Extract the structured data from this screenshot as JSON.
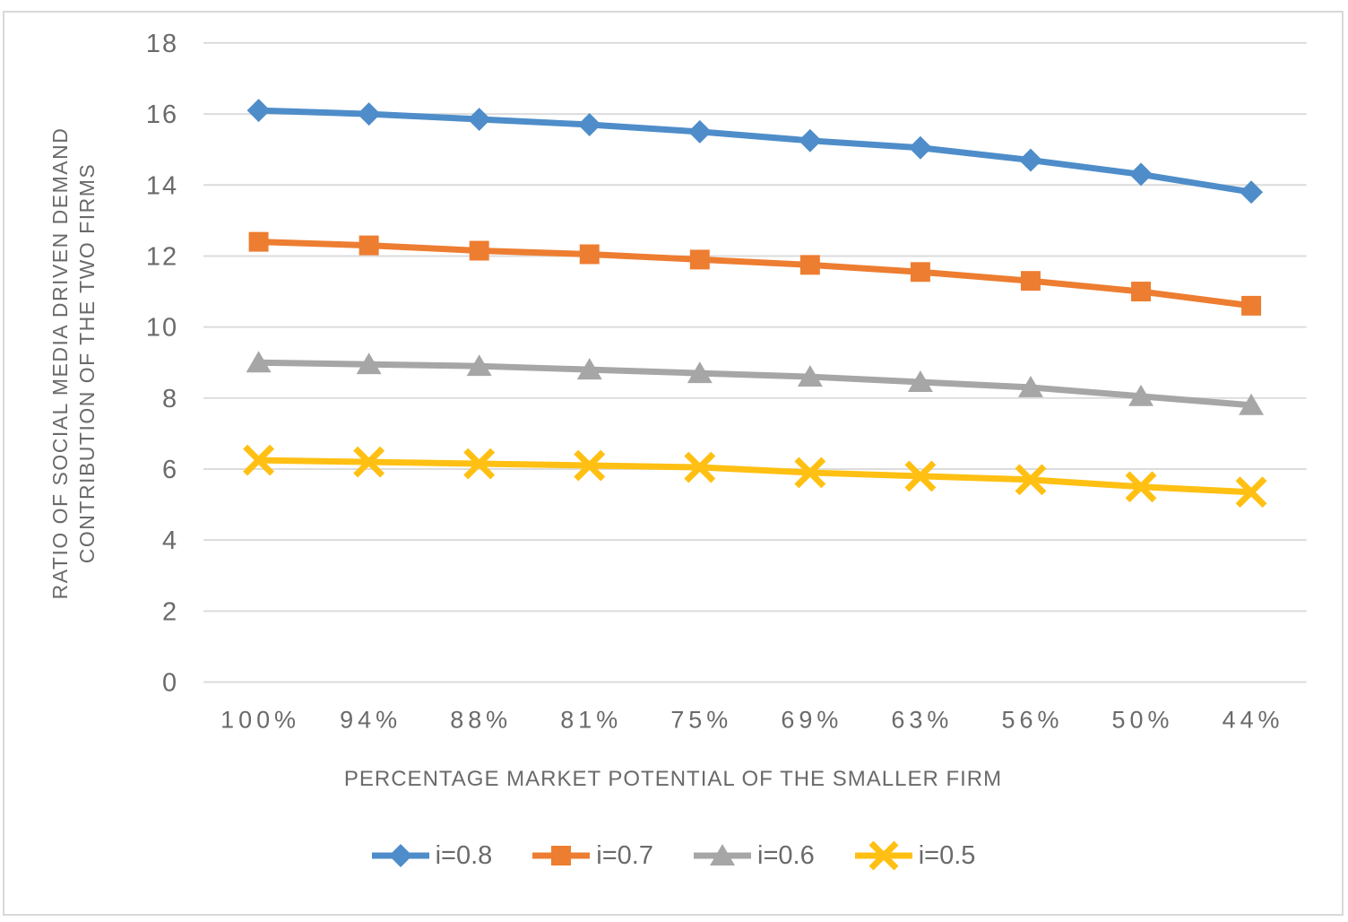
{
  "chart_data": {
    "type": "line",
    "title": "",
    "xlabel": "PERCENTAGE MARKET POTENTIAL OF THE SMALLER FIRM",
    "ylabel": "RATIO OF SOCIAL MEDIA DRIVEN DEMAND CONTRIBUTION OF THE TWO FIRMS",
    "ylabel_lines": [
      "RATIO OF SOCIAL MEDIA DRIVEN DEMAND",
      "CONTRIBUTION OF THE TWO FIRMS"
    ],
    "categories": [
      "100%",
      "94%",
      "88%",
      "81%",
      "75%",
      "69%",
      "63%",
      "56%",
      "50%",
      "44%"
    ],
    "yticks": [
      "0",
      "2",
      "4",
      "6",
      "8",
      "10",
      "12",
      "14",
      "16",
      "18"
    ],
    "ylim": [
      0,
      18
    ],
    "grid": true,
    "legend_position": "bottom",
    "series": [
      {
        "name": "i=0.8",
        "color": "#4E8DC9",
        "marker": "diamond",
        "values": [
          16.1,
          16.0,
          15.85,
          15.7,
          15.5,
          15.25,
          15.05,
          14.7,
          14.3,
          13.8
        ]
      },
      {
        "name": "i=0.7",
        "color": "#ED7D31",
        "marker": "square",
        "values": [
          12.4,
          12.3,
          12.15,
          12.05,
          11.9,
          11.75,
          11.55,
          11.3,
          11.0,
          10.6
        ]
      },
      {
        "name": "i=0.6",
        "color": "#A6A6A6",
        "marker": "triangle",
        "values": [
          9.0,
          8.95,
          8.9,
          8.8,
          8.7,
          8.6,
          8.45,
          8.3,
          8.05,
          7.8
        ]
      },
      {
        "name": "i=0.5",
        "color": "#FFC013",
        "marker": "x",
        "values": [
          6.25,
          6.2,
          6.15,
          6.1,
          6.05,
          5.9,
          5.8,
          5.7,
          5.5,
          5.35
        ]
      }
    ],
    "colors": {
      "gridline": "#dcdcdc",
      "axis_text": "#6a6a6a",
      "frame_border": "#d9d9dc",
      "background": "#ffffff"
    }
  }
}
